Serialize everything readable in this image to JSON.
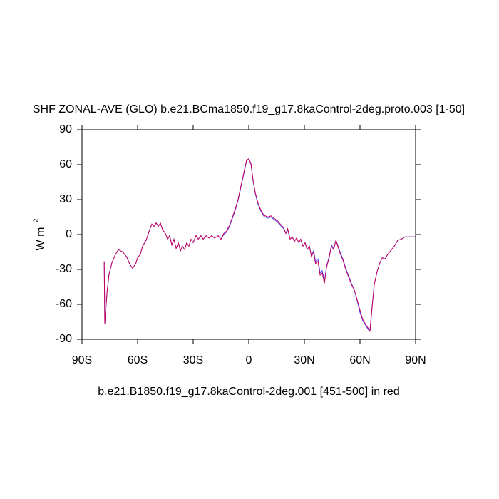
{
  "chart_data": {
    "type": "line",
    "title": "SHF ZONAL-AVE (GLO) b.e21.BCma1850.f19_g17.8kaControl-2deg.proto.003 [1-50]",
    "x_label": "b.e21.B1850.f19_g17.8kaControl-2deg.001 [451-500] in red",
    "y_label": {
      "text": "W m",
      "superscript": "-2"
    },
    "xlim": [
      -90,
      90
    ],
    "ylim": [
      -90,
      90
    ],
    "xticks": [
      {
        "value": -90,
        "label": "90S"
      },
      {
        "value": -60,
        "label": "60S"
      },
      {
        "value": -30,
        "label": "30S"
      },
      0,
      {
        "value": 30,
        "label": "30N"
      },
      {
        "value": 60,
        "label": "60N"
      },
      {
        "value": 90,
        "label": "90N"
      }
    ],
    "yticks": [
      -90,
      -60,
      -30,
      0,
      30,
      60,
      90
    ],
    "x": [
      -78,
      -77.7,
      -76.5,
      -75.4,
      -73.8,
      -71.9,
      -70.4,
      -68,
      -66,
      -64,
      -62.7,
      -61,
      -60,
      -58.5,
      -57.3,
      -55.4,
      -53.5,
      -52.3,
      -51,
      -50,
      -48.8,
      -47.7,
      -46.5,
      -45,
      -43.8,
      -42.7,
      -41.5,
      -40.4,
      -39.2,
      -38,
      -36.9,
      -35.8,
      -34.6,
      -33.5,
      -32.3,
      -31.2,
      -30,
      -28.5,
      -27.3,
      -25.8,
      -24.6,
      -23,
      -21.5,
      -20,
      -18.5,
      -16.5,
      -15,
      -13.5,
      -12,
      -10.4,
      -8.8,
      -7.3,
      -5.8,
      -4.2,
      -2.7,
      -1.2,
      0,
      1.2,
      2.3,
      3.5,
      5,
      6.5,
      8,
      10,
      12,
      13.5,
      15.4,
      17,
      18.8,
      20,
      21,
      22.3,
      23.5,
      24.6,
      25.8,
      27,
      28,
      29.2,
      30.4,
      31.5,
      32.7,
      33.8,
      35,
      36,
      37.3,
      38.5,
      39.6,
      40.8,
      42,
      43.5,
      44.6,
      45.8,
      47,
      48,
      49.2,
      50.8,
      52.3,
      54,
      55.4,
      57,
      58.5,
      60,
      61.5,
      63,
      64.6,
      65.4,
      66.5,
      67.7,
      69.2,
      70.8,
      72,
      73.5,
      75,
      76.5,
      78.5,
      80.4,
      82.3,
      84.2,
      86.5,
      90
    ],
    "series": [
      {
        "name": "blue",
        "color": "#4a4aff",
        "values": [
          -23,
          -77,
          -50,
          -34,
          -24,
          -17,
          -13,
          -15,
          -19,
          -26,
          -29,
          -25,
          -20,
          -17,
          -10,
          -5,
          4,
          9,
          7,
          10,
          7,
          10,
          4,
          1,
          -4,
          -1,
          -9,
          -4,
          -12,
          -7,
          -14,
          -10,
          -13,
          -7,
          -10,
          -4,
          -7,
          -1,
          -4,
          -1,
          -4,
          -1,
          -3,
          -1,
          -3,
          -1,
          -4,
          0,
          2,
          7,
          14,
          21,
          29,
          41,
          52,
          63,
          65,
          60,
          46,
          35,
          26,
          20,
          16,
          14,
          15,
          13,
          11,
          8,
          5,
          1,
          4,
          -4,
          -2,
          -6,
          -3,
          -7,
          -4,
          -10,
          -7,
          -13,
          -10,
          -18,
          -14,
          -23,
          -21,
          -33,
          -31,
          -40,
          -27,
          -18,
          -9,
          -12,
          -5,
          -9,
          -15,
          -21,
          -29,
          -36,
          -42,
          -48,
          -57,
          -67,
          -74,
          -78,
          -82,
          -82,
          -62,
          -43,
          -32,
          -24,
          -20,
          -21,
          -17,
          -14,
          -10,
          -5,
          -4,
          -2,
          -2,
          -2
        ]
      },
      {
        "name": "red",
        "color": "#c8005a",
        "values": [
          -23,
          -77,
          -50,
          -34,
          -24,
          -17,
          -13,
          -15,
          -19,
          -26,
          -29,
          -25,
          -20,
          -17,
          -10,
          -5,
          4,
          9,
          7,
          10,
          7,
          10,
          4,
          1,
          -4,
          -1,
          -9,
          -4,
          -12,
          -7,
          -14,
          -10,
          -13,
          -7,
          -10,
          -4,
          -7,
          -1,
          -4,
          -1,
          -4,
          -1,
          -3,
          -1,
          -3,
          -1,
          -4,
          1,
          3,
          8,
          15,
          22,
          30,
          42,
          53,
          64,
          65,
          61,
          47,
          36,
          27,
          21,
          17,
          15,
          16,
          14,
          12,
          9,
          6,
          1,
          5,
          -4,
          -2,
          -6,
          -3,
          -7,
          -4,
          -10,
          -7,
          -13,
          -10,
          -19,
          -15,
          -25,
          -23,
          -35,
          -33,
          -42,
          -28,
          -19,
          -10,
          -13,
          -5,
          -10,
          -16,
          -22,
          -30,
          -37,
          -43,
          -48,
          -56,
          -65,
          -73,
          -77,
          -81,
          -83,
          -63,
          -43,
          -32,
          -24,
          -20,
          -21,
          -17,
          -14,
          -10,
          -5,
          -4,
          -2,
          -2,
          -2
        ]
      }
    ]
  }
}
